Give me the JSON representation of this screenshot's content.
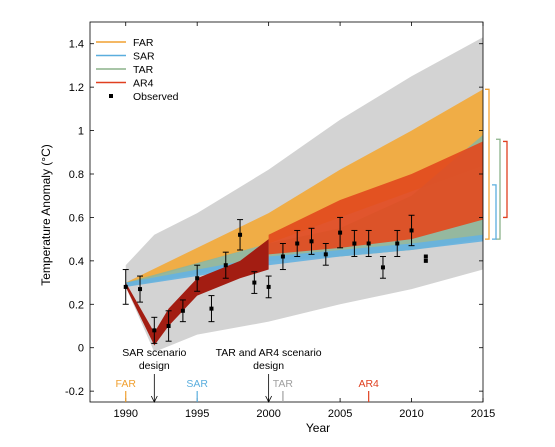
{
  "chart_data": {
    "type": "area",
    "xlabel": "Year",
    "ylabel": "Temperature Anomaly (°C)",
    "xlim": [
      1987.5,
      2015
    ],
    "ylim": [
      -0.25,
      1.5
    ],
    "x_ticks": [
      1990,
      1995,
      2000,
      2005,
      2010,
      2015
    ],
    "y_ticks": [
      -0.2,
      0,
      0.2,
      0.4,
      0.6,
      0.8,
      1,
      1.2,
      1.4
    ],
    "x_tick_labels": [
      "1990",
      "1995",
      "2000",
      "2005",
      "2010",
      "2015"
    ],
    "y_tick_labels": [
      "-0.2",
      "0",
      "0.2",
      "0.4",
      "0.6",
      "0.8",
      "1",
      "1.2",
      "1.4"
    ],
    "legend": {
      "placement": "top-left",
      "entries": [
        {
          "label": "FAR",
          "color": "#f0a030",
          "kind": "line"
        },
        {
          "label": "SAR",
          "color": "#5aaede",
          "kind": "line"
        },
        {
          "label": "TAR",
          "color": "#8bb28a",
          "kind": "line"
        },
        {
          "label": "AR4",
          "color": "#e04020",
          "kind": "line"
        },
        {
          "label": "Observed",
          "color": "#000000",
          "kind": "marker"
        }
      ]
    },
    "envelope": {
      "color": "#d3d3d3",
      "x": [
        1990,
        1992,
        1995,
        2000,
        2005,
        2010,
        2015
      ],
      "upper": [
        0.38,
        0.52,
        0.62,
        0.82,
        1.05,
        1.25,
        1.43
      ],
      "lower": [
        0.28,
        -0.02,
        0.06,
        0.12,
        0.2,
        0.27,
        0.36
      ]
    },
    "bands": [
      {
        "name": "FAR",
        "color": "#f2a93a",
        "x": [
          1990,
          2000,
          2005,
          2010,
          2015
        ],
        "upper": [
          0.3,
          0.62,
          0.82,
          1.0,
          1.19
        ],
        "lower": [
          0.29,
          0.48,
          0.6,
          0.72,
          0.84
        ]
      },
      {
        "name": "TAR",
        "color": "#8fb59a",
        "x": [
          1990,
          2000,
          2005,
          2010,
          2015
        ],
        "upper": [
          0.3,
          0.48,
          0.55,
          0.7,
          0.98
        ],
        "lower": [
          0.28,
          0.4,
          0.42,
          0.45,
          0.5
        ]
      },
      {
        "name": "SAR",
        "color": "#66b2e0",
        "x": [
          1990,
          2000,
          2005,
          2010,
          2015
        ],
        "upper": [
          0.3,
          0.42,
          0.45,
          0.48,
          0.52
        ],
        "lower": [
          0.28,
          0.38,
          0.42,
          0.45,
          0.49
        ]
      },
      {
        "name": "AR4",
        "color": "#e24a1e",
        "x": [
          2000,
          2005,
          2010,
          2015
        ],
        "upper": [
          0.52,
          0.68,
          0.8,
          0.95
        ],
        "lower": [
          0.43,
          0.46,
          0.5,
          0.59
        ]
      }
    ],
    "ar4_early": {
      "color": "#a31d12",
      "x": [
        1990,
        1992,
        1993,
        1995,
        1998,
        2000
      ],
      "upper": [
        0.3,
        0.07,
        0.18,
        0.32,
        0.4,
        0.5
      ],
      "lower": [
        0.28,
        0.01,
        0.1,
        0.24,
        0.32,
        0.36
      ]
    },
    "observed": [
      {
        "x": 1990,
        "y": 0.28,
        "err": 0.08
      },
      {
        "x": 1991,
        "y": 0.27,
        "err": 0.06
      },
      {
        "x": 1992,
        "y": 0.08,
        "err": 0.06
      },
      {
        "x": 1993,
        "y": 0.1,
        "err": 0.07
      },
      {
        "x": 1994,
        "y": 0.17,
        "err": 0.05
      },
      {
        "x": 1995,
        "y": 0.32,
        "err": 0.06
      },
      {
        "x": 1996,
        "y": 0.18,
        "err": 0.06
      },
      {
        "x": 1997,
        "y": 0.38,
        "err": 0.06
      },
      {
        "x": 1998,
        "y": 0.52,
        "err": 0.07
      },
      {
        "x": 1999,
        "y": 0.3,
        "err": 0.05
      },
      {
        "x": 2000,
        "y": 0.28,
        "err": 0.05
      },
      {
        "x": 2001,
        "y": 0.42,
        "err": 0.06
      },
      {
        "x": 2002,
        "y": 0.48,
        "err": 0.06
      },
      {
        "x": 2003,
        "y": 0.49,
        "err": 0.06
      },
      {
        "x": 2004,
        "y": 0.43,
        "err": 0.05
      },
      {
        "x": 2005,
        "y": 0.53,
        "err": 0.07
      },
      {
        "x": 2006,
        "y": 0.48,
        "err": 0.06
      },
      {
        "x": 2007,
        "y": 0.48,
        "err": 0.06
      },
      {
        "x": 2008,
        "y": 0.37,
        "err": 0.05
      },
      {
        "x": 2009,
        "y": 0.48,
        "err": 0.06
      },
      {
        "x": 2010,
        "y": 0.54,
        "err": 0.07
      }
    ],
    "observed_extra": [
      {
        "x": 2011,
        "y": 0.42
      },
      {
        "x": 2011,
        "y": 0.4
      }
    ],
    "annotations": [
      {
        "text": "SAR scenario",
        "line2": "design",
        "x": 1992
      },
      {
        "text": "TAR and AR4 scenario",
        "line2": "design",
        "x": 2000
      }
    ],
    "report_markers": [
      {
        "label": "FAR",
        "x": 1990,
        "color": "#f0a030"
      },
      {
        "label": "SAR",
        "x": 1995,
        "color": "#5aaede"
      },
      {
        "label": "TAR",
        "x": 2001,
        "color": "#a0a0a0"
      },
      {
        "label": "AR4",
        "x": 2007,
        "color": "#e04020"
      }
    ],
    "side_brackets": [
      {
        "name": "FAR",
        "color": "#f0a030",
        "top": 1.19,
        "bottom": 0.5
      },
      {
        "name": "TAR",
        "color": "#8bb28a",
        "top": 0.96,
        "bottom": 0.5
      },
      {
        "name": "AR4",
        "color": "#e04020",
        "top": 0.95,
        "bottom": 0.6
      },
      {
        "name": "SAR",
        "color": "#5aaede",
        "top": 0.75,
        "bottom": 0.5
      }
    ]
  }
}
